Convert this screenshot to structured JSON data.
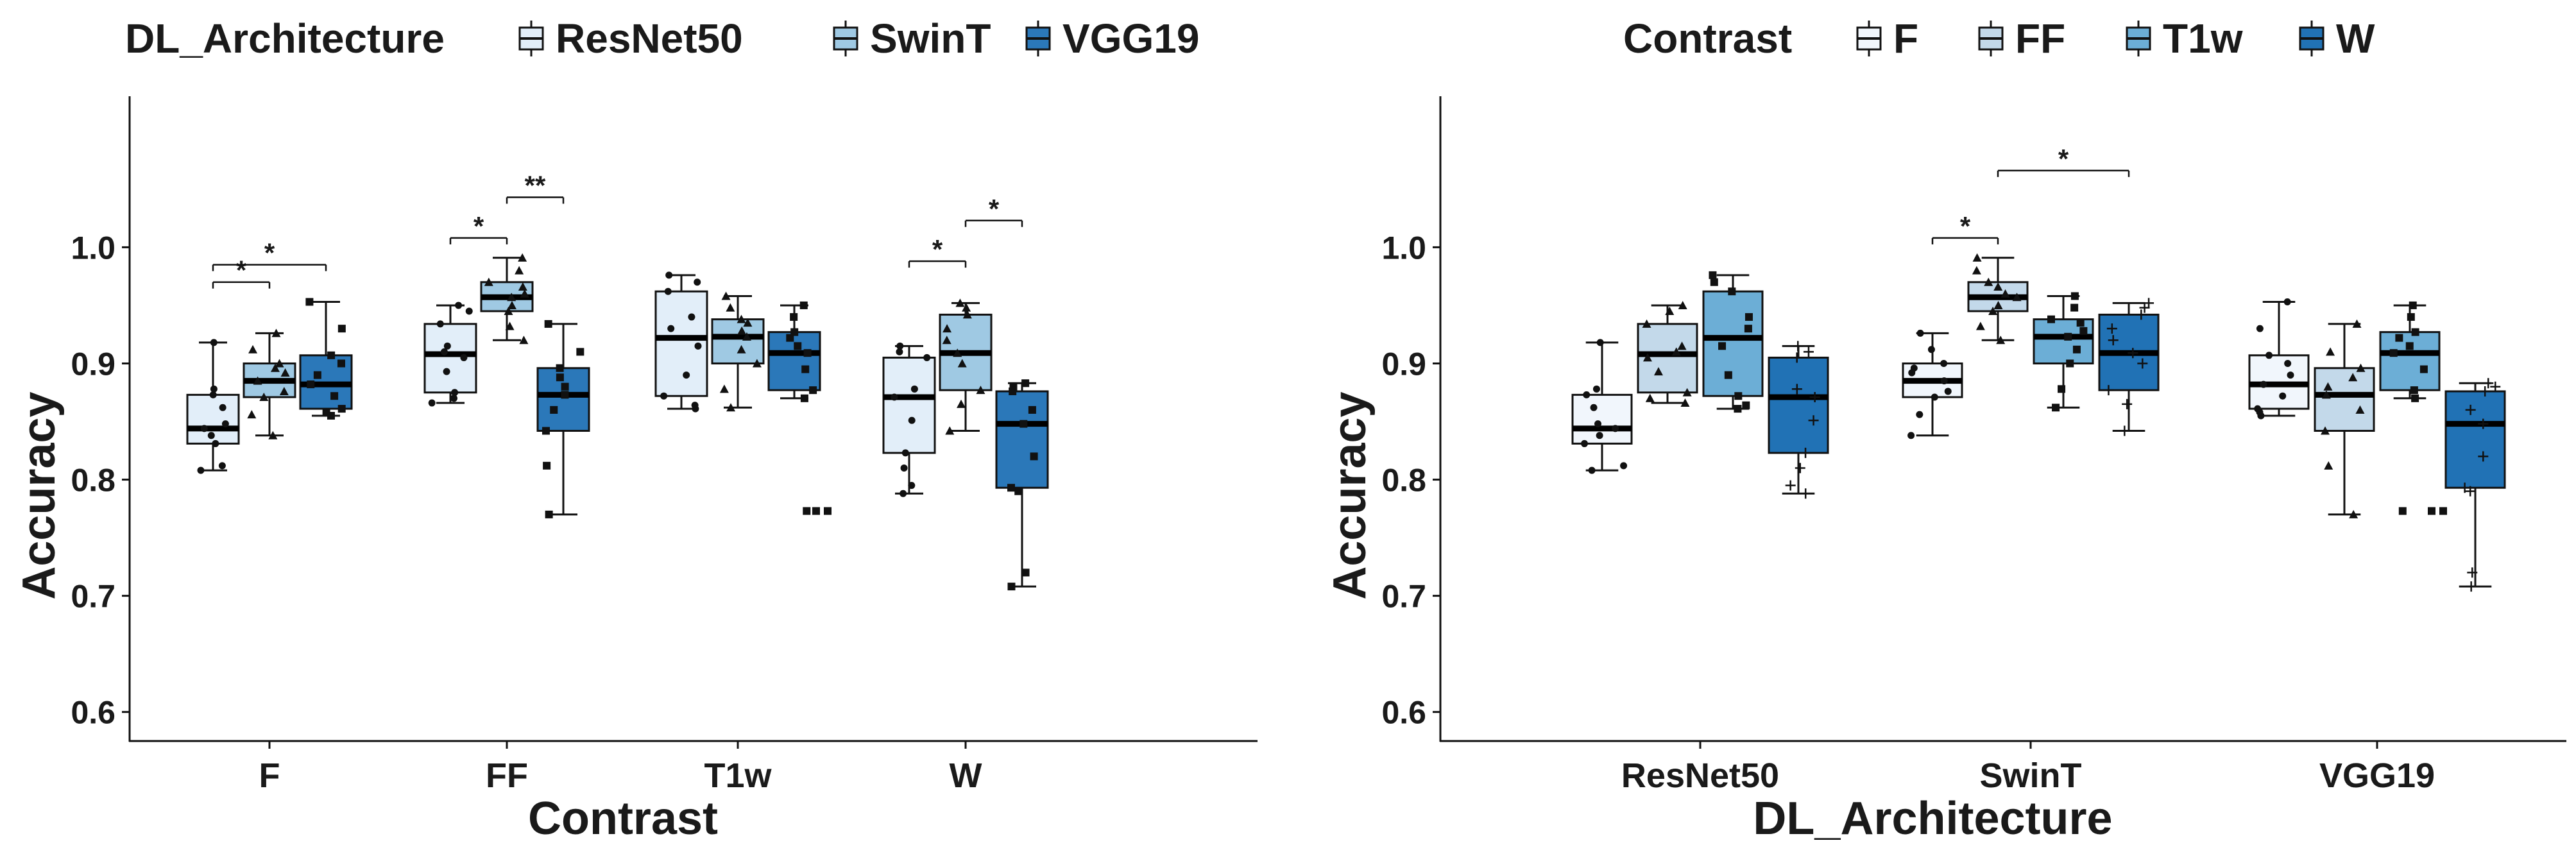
{
  "chart_data": [
    {
      "type": "boxplot",
      "panel": "left",
      "xlabel": "Contrast",
      "ylabel": "Accuracy",
      "ylim": [
        0.575,
        1.13
      ],
      "yticks": [
        0.6,
        0.7,
        0.8,
        0.9,
        1.0
      ],
      "ytick_labels": [
        "0.6",
        "0.7",
        "0.8",
        "0.9",
        "1.0"
      ],
      "grid": false,
      "legend": {
        "placement": "top-left",
        "title": "DL_Architecture",
        "entries": [
          {
            "label": "ResNet50",
            "color": "#e2eef9"
          },
          {
            "label": "SwinT",
            "color": "#9fc9e3"
          },
          {
            "label": "VGG19",
            "color": "#2b78b9"
          }
        ]
      },
      "categories": [
        "F",
        "FF",
        "T1w",
        "W"
      ],
      "series": [
        {
          "name": "ResNet50",
          "color": "#e2eef9",
          "marker": "dot",
          "boxes": [
            {
              "whislo": 0.808,
              "q1": 0.831,
              "med": 0.844,
              "q3": 0.873,
              "whishi": 0.918,
              "fliers": [],
              "points": [
                0.808,
                0.812,
                0.831,
                0.838,
                0.844,
                0.848,
                0.862,
                0.873,
                0.878,
                0.918
              ]
            },
            {
              "whislo": 0.866,
              "q1": 0.875,
              "med": 0.908,
              "q3": 0.934,
              "whishi": 0.95,
              "fliers": [],
              "points": [
                0.866,
                0.87,
                0.875,
                0.893,
                0.905,
                0.91,
                0.915,
                0.934,
                0.945,
                0.95
              ]
            },
            {
              "whislo": 0.861,
              "q1": 0.872,
              "med": 0.922,
              "q3": 0.962,
              "whishi": 0.976,
              "fliers": [],
              "points": [
                0.861,
                0.864,
                0.872,
                0.89,
                0.915,
                0.93,
                0.94,
                0.962,
                0.97,
                0.976
              ]
            },
            {
              "whislo": 0.788,
              "q1": 0.823,
              "med": 0.871,
              "q3": 0.905,
              "whishi": 0.915,
              "fliers": [],
              "points": [
                0.788,
                0.795,
                0.81,
                0.823,
                0.851,
                0.871,
                0.878,
                0.905,
                0.91,
                0.915
              ]
            }
          ]
        },
        {
          "name": "SwinT",
          "color": "#9fc9e3",
          "marker": "triangle",
          "boxes": [
            {
              "whislo": 0.838,
              "q1": 0.871,
              "med": 0.885,
              "q3": 0.9,
              "whishi": 0.926,
              "fliers": [],
              "points": [
                0.838,
                0.856,
                0.871,
                0.876,
                0.885,
                0.892,
                0.896,
                0.9,
                0.912,
                0.926
              ]
            },
            {
              "whislo": 0.92,
              "q1": 0.945,
              "med": 0.957,
              "q3": 0.97,
              "whishi": 0.991,
              "fliers": [],
              "points": [
                0.92,
                0.932,
                0.945,
                0.95,
                0.957,
                0.96,
                0.966,
                0.97,
                0.98,
                0.991
              ]
            },
            {
              "whislo": 0.862,
              "q1": 0.9,
              "med": 0.923,
              "q3": 0.938,
              "whishi": 0.958,
              "fliers": [],
              "points": [
                0.862,
                0.878,
                0.9,
                0.912,
                0.923,
                0.928,
                0.935,
                0.938,
                0.948,
                0.958
              ]
            },
            {
              "whislo": 0.842,
              "q1": 0.877,
              "med": 0.909,
              "q3": 0.942,
              "whishi": 0.952,
              "fliers": [],
              "points": [
                0.842,
                0.865,
                0.877,
                0.9,
                0.909,
                0.92,
                0.93,
                0.942,
                0.948,
                0.952
              ]
            }
          ]
        },
        {
          "name": "VGG19",
          "color": "#2b78b9",
          "marker": "square",
          "boxes": [
            {
              "whislo": 0.855,
              "q1": 0.861,
              "med": 0.882,
              "q3": 0.907,
              "whishi": 0.953,
              "fliers": [],
              "points": [
                0.855,
                0.858,
                0.861,
                0.872,
                0.882,
                0.89,
                0.9,
                0.907,
                0.93,
                0.953
              ]
            },
            {
              "whislo": 0.77,
              "q1": 0.842,
              "med": 0.873,
              "q3": 0.896,
              "whishi": 0.934,
              "fliers": [],
              "points": [
                0.77,
                0.812,
                0.842,
                0.86,
                0.873,
                0.88,
                0.888,
                0.896,
                0.91,
                0.934
              ]
            },
            {
              "whislo": 0.87,
              "q1": 0.877,
              "med": 0.909,
              "q3": 0.927,
              "whishi": 0.95,
              "fliers": [
                0.773
              ],
              "points": [
                0.773,
                0.87,
                0.877,
                0.895,
                0.909,
                0.915,
                0.922,
                0.927,
                0.94,
                0.95
              ]
            },
            {
              "whislo": 0.708,
              "q1": 0.793,
              "med": 0.848,
              "q3": 0.876,
              "whishi": 0.883,
              "fliers": [],
              "points": [
                0.708,
                0.72,
                0.79,
                0.793,
                0.82,
                0.848,
                0.86,
                0.876,
                0.88,
                0.883
              ]
            }
          ]
        }
      ],
      "annotations": [
        {
          "group": 0,
          "from": 0,
          "to": 1,
          "y": 0.97,
          "label": "*"
        },
        {
          "group": 0,
          "from": 0,
          "to": 2,
          "y": 0.985,
          "label": "*"
        },
        {
          "group": 1,
          "from": 0,
          "to": 1,
          "y": 1.008,
          "label": "*"
        },
        {
          "group": 1,
          "from": 1,
          "to": 2,
          "y": 1.043,
          "label": "**"
        },
        {
          "group": 3,
          "from": 0,
          "to": 1,
          "y": 0.988,
          "label": "*"
        },
        {
          "group": 3,
          "from": 1,
          "to": 2,
          "y": 1.023,
          "label": "*"
        }
      ]
    },
    {
      "type": "boxplot",
      "panel": "right",
      "xlabel": "DL_Architecture",
      "ylabel": "Accuracy",
      "ylim": [
        0.575,
        1.13
      ],
      "yticks": [
        0.6,
        0.7,
        0.8,
        0.9,
        1.0
      ],
      "ytick_labels": [
        "0.6",
        "0.7",
        "0.8",
        "0.9",
        "1.0"
      ],
      "grid": false,
      "legend": {
        "placement": "top-right",
        "title": "Contrast",
        "entries": [
          {
            "label": "F",
            "color": "#f1f6fc"
          },
          {
            "label": "FF",
            "color": "#c3d9ea"
          },
          {
            "label": "T1w",
            "color": "#6caed6"
          },
          {
            "label": "W",
            "color": "#2172b5"
          }
        ]
      },
      "categories": [
        "ResNet50",
        "SwinT",
        "VGG19"
      ],
      "series": [
        {
          "name": "F",
          "color": "#f1f6fc",
          "marker": "dot",
          "boxes": [
            {
              "whislo": 0.808,
              "q1": 0.831,
              "med": 0.844,
              "q3": 0.873,
              "whishi": 0.918,
              "fliers": [],
              "points": [
                0.808,
                0.812,
                0.831,
                0.838,
                0.844,
                0.848,
                0.862,
                0.873,
                0.878,
                0.918
              ]
            },
            {
              "whislo": 0.838,
              "q1": 0.871,
              "med": 0.885,
              "q3": 0.9,
              "whishi": 0.926,
              "fliers": [],
              "points": [
                0.838,
                0.856,
                0.871,
                0.876,
                0.885,
                0.892,
                0.896,
                0.9,
                0.912,
                0.926
              ]
            },
            {
              "whislo": 0.855,
              "q1": 0.861,
              "med": 0.882,
              "q3": 0.907,
              "whishi": 0.953,
              "fliers": [],
              "points": [
                0.855,
                0.858,
                0.861,
                0.872,
                0.882,
                0.89,
                0.9,
                0.907,
                0.93,
                0.953
              ]
            }
          ]
        },
        {
          "name": "FF",
          "color": "#c3d9ea",
          "marker": "triangle",
          "boxes": [
            {
              "whislo": 0.866,
              "q1": 0.875,
              "med": 0.908,
              "q3": 0.934,
              "whishi": 0.95,
              "fliers": [],
              "points": [
                0.866,
                0.87,
                0.875,
                0.893,
                0.905,
                0.91,
                0.915,
                0.934,
                0.945,
                0.95
              ]
            },
            {
              "whislo": 0.92,
              "q1": 0.945,
              "med": 0.957,
              "q3": 0.97,
              "whishi": 0.991,
              "fliers": [],
              "points": [
                0.92,
                0.932,
                0.945,
                0.95,
                0.957,
                0.96,
                0.966,
                0.97,
                0.98,
                0.991
              ]
            },
            {
              "whislo": 0.77,
              "q1": 0.842,
              "med": 0.873,
              "q3": 0.896,
              "whishi": 0.934,
              "fliers": [],
              "points": [
                0.77,
                0.812,
                0.842,
                0.86,
                0.873,
                0.88,
                0.888,
                0.896,
                0.91,
                0.934
              ]
            }
          ]
        },
        {
          "name": "T1w",
          "color": "#6caed6",
          "marker": "square",
          "boxes": [
            {
              "whislo": 0.861,
              "q1": 0.872,
              "med": 0.922,
              "q3": 0.962,
              "whishi": 0.976,
              "fliers": [],
              "points": [
                0.861,
                0.864,
                0.872,
                0.89,
                0.915,
                0.93,
                0.94,
                0.962,
                0.97,
                0.976
              ]
            },
            {
              "whislo": 0.862,
              "q1": 0.9,
              "med": 0.923,
              "q3": 0.938,
              "whishi": 0.958,
              "fliers": [],
              "points": [
                0.862,
                0.878,
                0.9,
                0.912,
                0.923,
                0.928,
                0.935,
                0.938,
                0.948,
                0.958
              ]
            },
            {
              "whislo": 0.87,
              "q1": 0.877,
              "med": 0.909,
              "q3": 0.927,
              "whishi": 0.95,
              "fliers": [
                0.773
              ],
              "points": [
                0.773,
                0.87,
                0.877,
                0.895,
                0.909,
                0.915,
                0.922,
                0.927,
                0.94,
                0.95
              ]
            }
          ]
        },
        {
          "name": "W",
          "color": "#2172b5",
          "marker": "plus",
          "boxes": [
            {
              "whislo": 0.788,
              "q1": 0.823,
              "med": 0.871,
              "q3": 0.905,
              "whishi": 0.915,
              "fliers": [],
              "points": [
                0.788,
                0.795,
                0.81,
                0.823,
                0.851,
                0.871,
                0.878,
                0.905,
                0.91,
                0.915
              ]
            },
            {
              "whislo": 0.842,
              "q1": 0.877,
              "med": 0.909,
              "q3": 0.942,
              "whishi": 0.952,
              "fliers": [],
              "points": [
                0.842,
                0.865,
                0.877,
                0.9,
                0.909,
                0.92,
                0.93,
                0.942,
                0.948,
                0.952
              ]
            },
            {
              "whislo": 0.708,
              "q1": 0.793,
              "med": 0.848,
              "q3": 0.876,
              "whishi": 0.883,
              "fliers": [],
              "points": [
                0.708,
                0.72,
                0.79,
                0.793,
                0.82,
                0.848,
                0.86,
                0.876,
                0.88,
                0.883
              ]
            }
          ]
        }
      ],
      "annotations": [
        {
          "group": 1,
          "from": 0,
          "to": 1,
          "y": 1.008,
          "label": "*"
        },
        {
          "group": 1,
          "from": 1,
          "to": 3,
          "y": 1.066,
          "label": "*"
        }
      ]
    }
  ]
}
